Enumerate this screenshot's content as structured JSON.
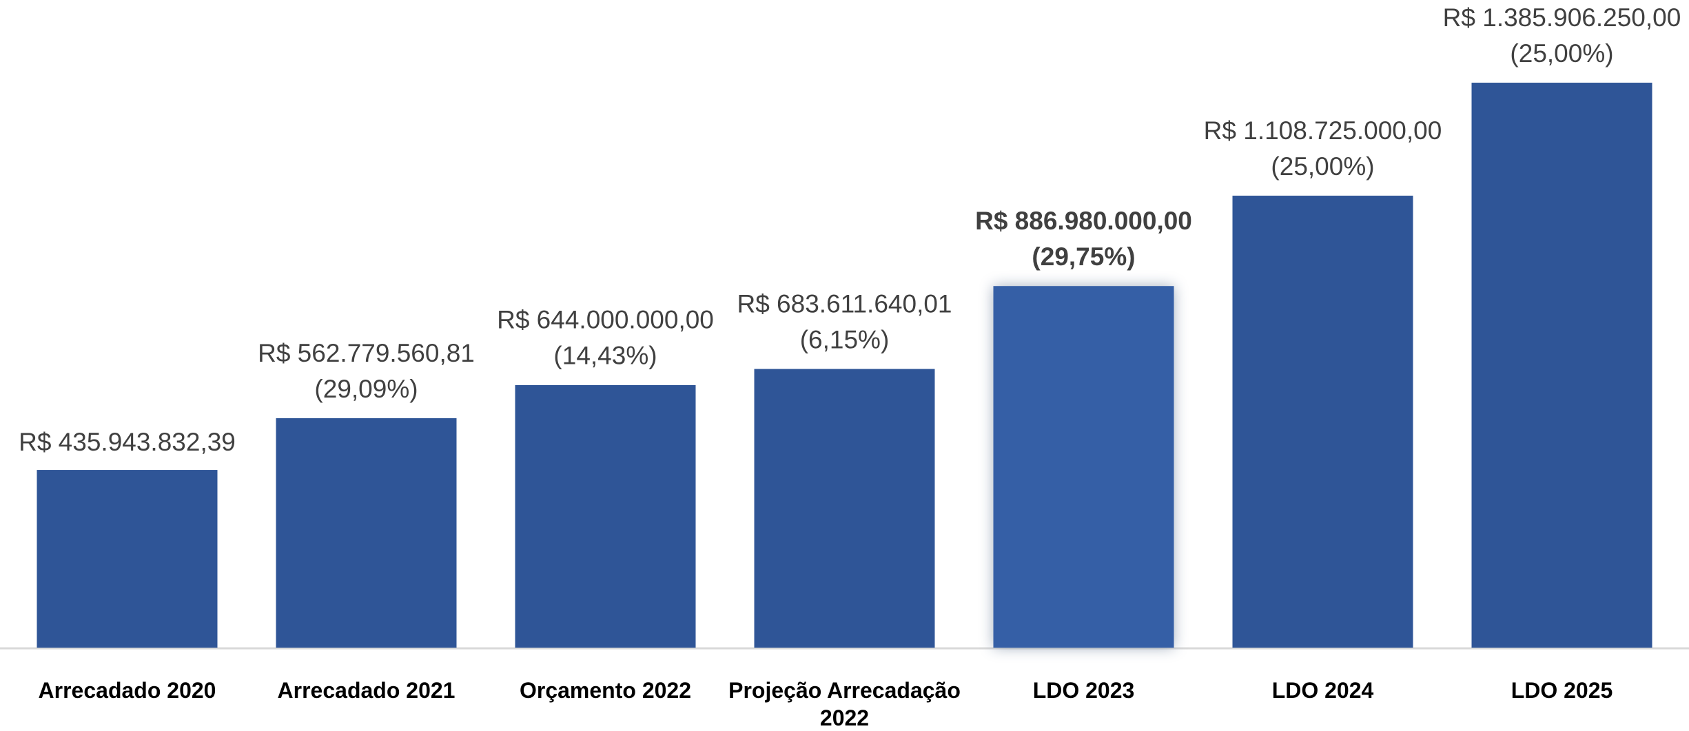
{
  "chart_data": {
    "type": "bar",
    "categories": [
      "Arrecadado 2020",
      "Arrecadado 2021",
      "Orçamento 2022",
      "Projeção Arrecadação 2022",
      "LDO 2023",
      "LDO 2024",
      "LDO 2025"
    ],
    "values": [
      435943832.39,
      562779560.81,
      644000000.0,
      683611640.01,
      886980000.0,
      1108725000.0,
      1385906250.0
    ],
    "value_labels": [
      "R$ 435.943.832,39",
      "R$ 562.779.560,81",
      "R$ 644.000.000,00",
      "R$ 683.611.640,01",
      "R$ 886.980.000,00",
      "R$ 1.108.725.000,00",
      "R$ 1.385.906.250,00"
    ],
    "growth_labels": [
      null,
      "(29,09%)",
      "(14,43%)",
      "(6,15%)",
      "(29,75%)",
      "(25,00%)",
      "(25,00%)"
    ],
    "color": "#2f5597",
    "highlight_color": "#355fa6",
    "highlight_index": 4
  }
}
